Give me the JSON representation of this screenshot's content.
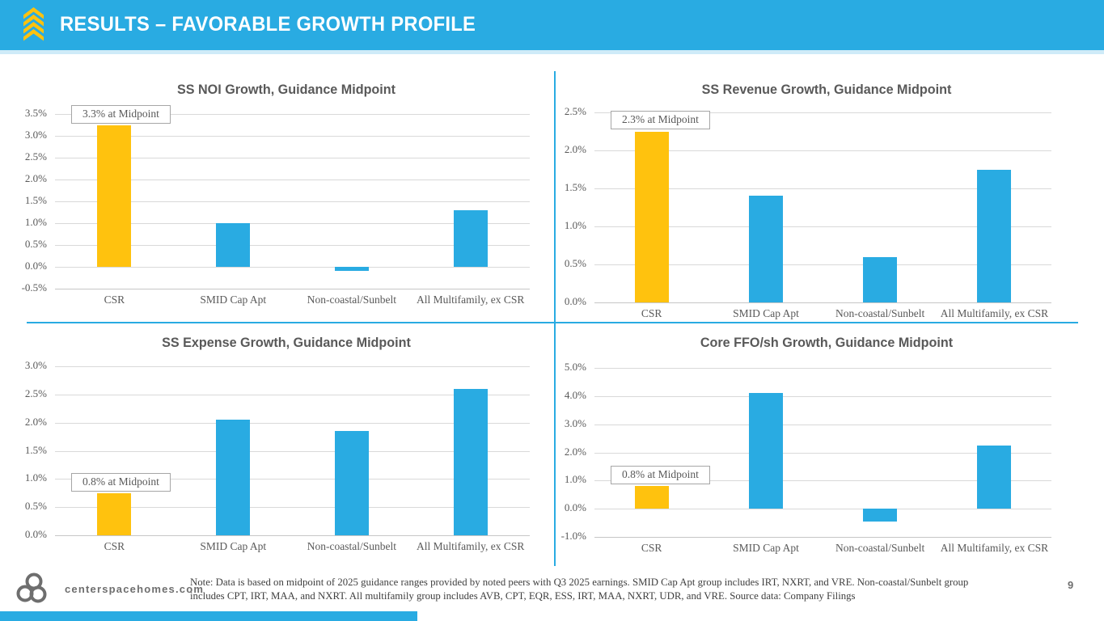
{
  "header": {
    "title": "RESULTS – FAVORABLE GROWTH PROFILE",
    "logo_icon": "gold-chevron-stack-icon"
  },
  "colors": {
    "accent_cyan": "#29ABE2",
    "accent_gold": "#FFC20E",
    "chart_title_gray": "#595959",
    "grid_gray": "#D9D9D9",
    "header_text": "#FFFFFF",
    "note_gray": "#3F3F3F"
  },
  "chart_data": [
    {
      "type": "bar",
      "title": "SS NOI Growth, Guidance Midpoint",
      "categories": [
        "CSR",
        "SMID Cap Apt",
        "Non-coastal/Sunbelt",
        "All Multifamily, ex CSR"
      ],
      "values": [
        3.25,
        1.0,
        -0.1,
        1.3
      ],
      "bar_colors": [
        "#FFC20E",
        "#29ABE2",
        "#29ABE2",
        "#29ABE2"
      ],
      "ymin": -0.5,
      "ymax": 3.5,
      "ystep": 0.5,
      "ylabel_format": "percent_1dp",
      "grid": true,
      "legend": "none",
      "callout": {
        "text": "3.3% at Midpoint",
        "anchor_value": 3.5
      }
    },
    {
      "type": "bar",
      "title": "SS Revenue Growth, Guidance Midpoint",
      "categories": [
        "CSR",
        "SMID Cap Apt",
        "Non-coastal/Sunbelt",
        "All Multifamily, ex CSR"
      ],
      "values": [
        2.25,
        1.4,
        0.6,
        1.75
      ],
      "bar_colors": [
        "#FFC20E",
        "#29ABE2",
        "#29ABE2",
        "#29ABE2"
      ],
      "ymin": 0.0,
      "ymax": 2.5,
      "ystep": 0.5,
      "ylabel_format": "percent_1dp",
      "grid": true,
      "legend": "none",
      "callout": {
        "text": "2.3% at Midpoint",
        "anchor_value": 2.4
      }
    },
    {
      "type": "bar",
      "title": "SS Expense Growth, Guidance Midpoint",
      "categories": [
        "CSR",
        "SMID Cap Apt",
        "Non-coastal/Sunbelt",
        "All Multifamily, ex CSR"
      ],
      "values": [
        0.75,
        2.05,
        1.85,
        2.6
      ],
      "bar_colors": [
        "#FFC20E",
        "#29ABE2",
        "#29ABE2",
        "#29ABE2"
      ],
      "ymin": 0.0,
      "ymax": 3.0,
      "ystep": 0.5,
      "ylabel_format": "percent_1dp",
      "grid": true,
      "legend": "none",
      "callout": {
        "text": "0.8% at Midpoint",
        "anchor_value": 0.95
      }
    },
    {
      "type": "bar",
      "title": "Core FFO/sh Growth, Guidance Midpoint",
      "categories": [
        "CSR",
        "SMID Cap Apt",
        "Non-coastal/Sunbelt",
        "All Multifamily, ex CSR"
      ],
      "values": [
        0.8,
        4.1,
        -0.45,
        2.25
      ],
      "bar_colors": [
        "#FFC20E",
        "#29ABE2",
        "#29ABE2",
        "#29ABE2"
      ],
      "ymin": -1.0,
      "ymax": 5.0,
      "ystep": 1.0,
      "ylabel_format": "percent_1dp",
      "grid": true,
      "legend": "none",
      "callout": {
        "text": "0.8% at Midpoint",
        "anchor_value": 1.2
      }
    }
  ],
  "footer": {
    "website": "centerspacehomes.com",
    "logo_icon": "trefoil-circles-icon",
    "note": "Note: Data is based on midpoint of 2025 guidance ranges provided by noted peers with Q3 2025 earnings. SMID Cap Apt group includes IRT, NXRT, and VRE. Non-coastal/Sunbelt group includes CPT, IRT, MAA, and NXRT. All multifamily group includes AVB, CPT, EQR, ESS, IRT, MAA, NXRT, UDR, and VRE. Source data: Company Filings",
    "page_number": "9"
  }
}
